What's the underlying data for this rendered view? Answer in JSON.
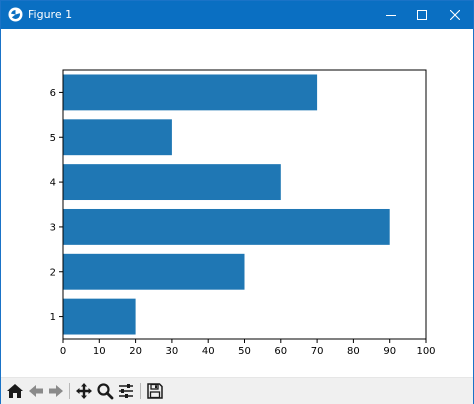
{
  "window": {
    "title": "Figure 1",
    "icons": [
      "matplotlib-logo-icon",
      "minimize-icon",
      "maximize-icon",
      "close-icon"
    ]
  },
  "toolbar": {
    "buttons": [
      "home-icon",
      "back-arrow-icon",
      "forward-arrow-icon",
      "pan-icon",
      "zoom-icon",
      "configure-subplots-icon",
      "save-icon"
    ]
  },
  "chart_data": {
    "type": "bar",
    "orientation": "horizontal",
    "categories": [
      "1",
      "2",
      "3",
      "4",
      "5",
      "6"
    ],
    "values": [
      20,
      50,
      90,
      60,
      30,
      70
    ],
    "xlim": [
      0,
      100
    ],
    "xticks": [
      0,
      10,
      20,
      30,
      40,
      50,
      60,
      70,
      80,
      90,
      100
    ],
    "ylim": [
      0.5,
      6.5
    ],
    "grid": false,
    "bar_color": "#1f77b4"
  }
}
